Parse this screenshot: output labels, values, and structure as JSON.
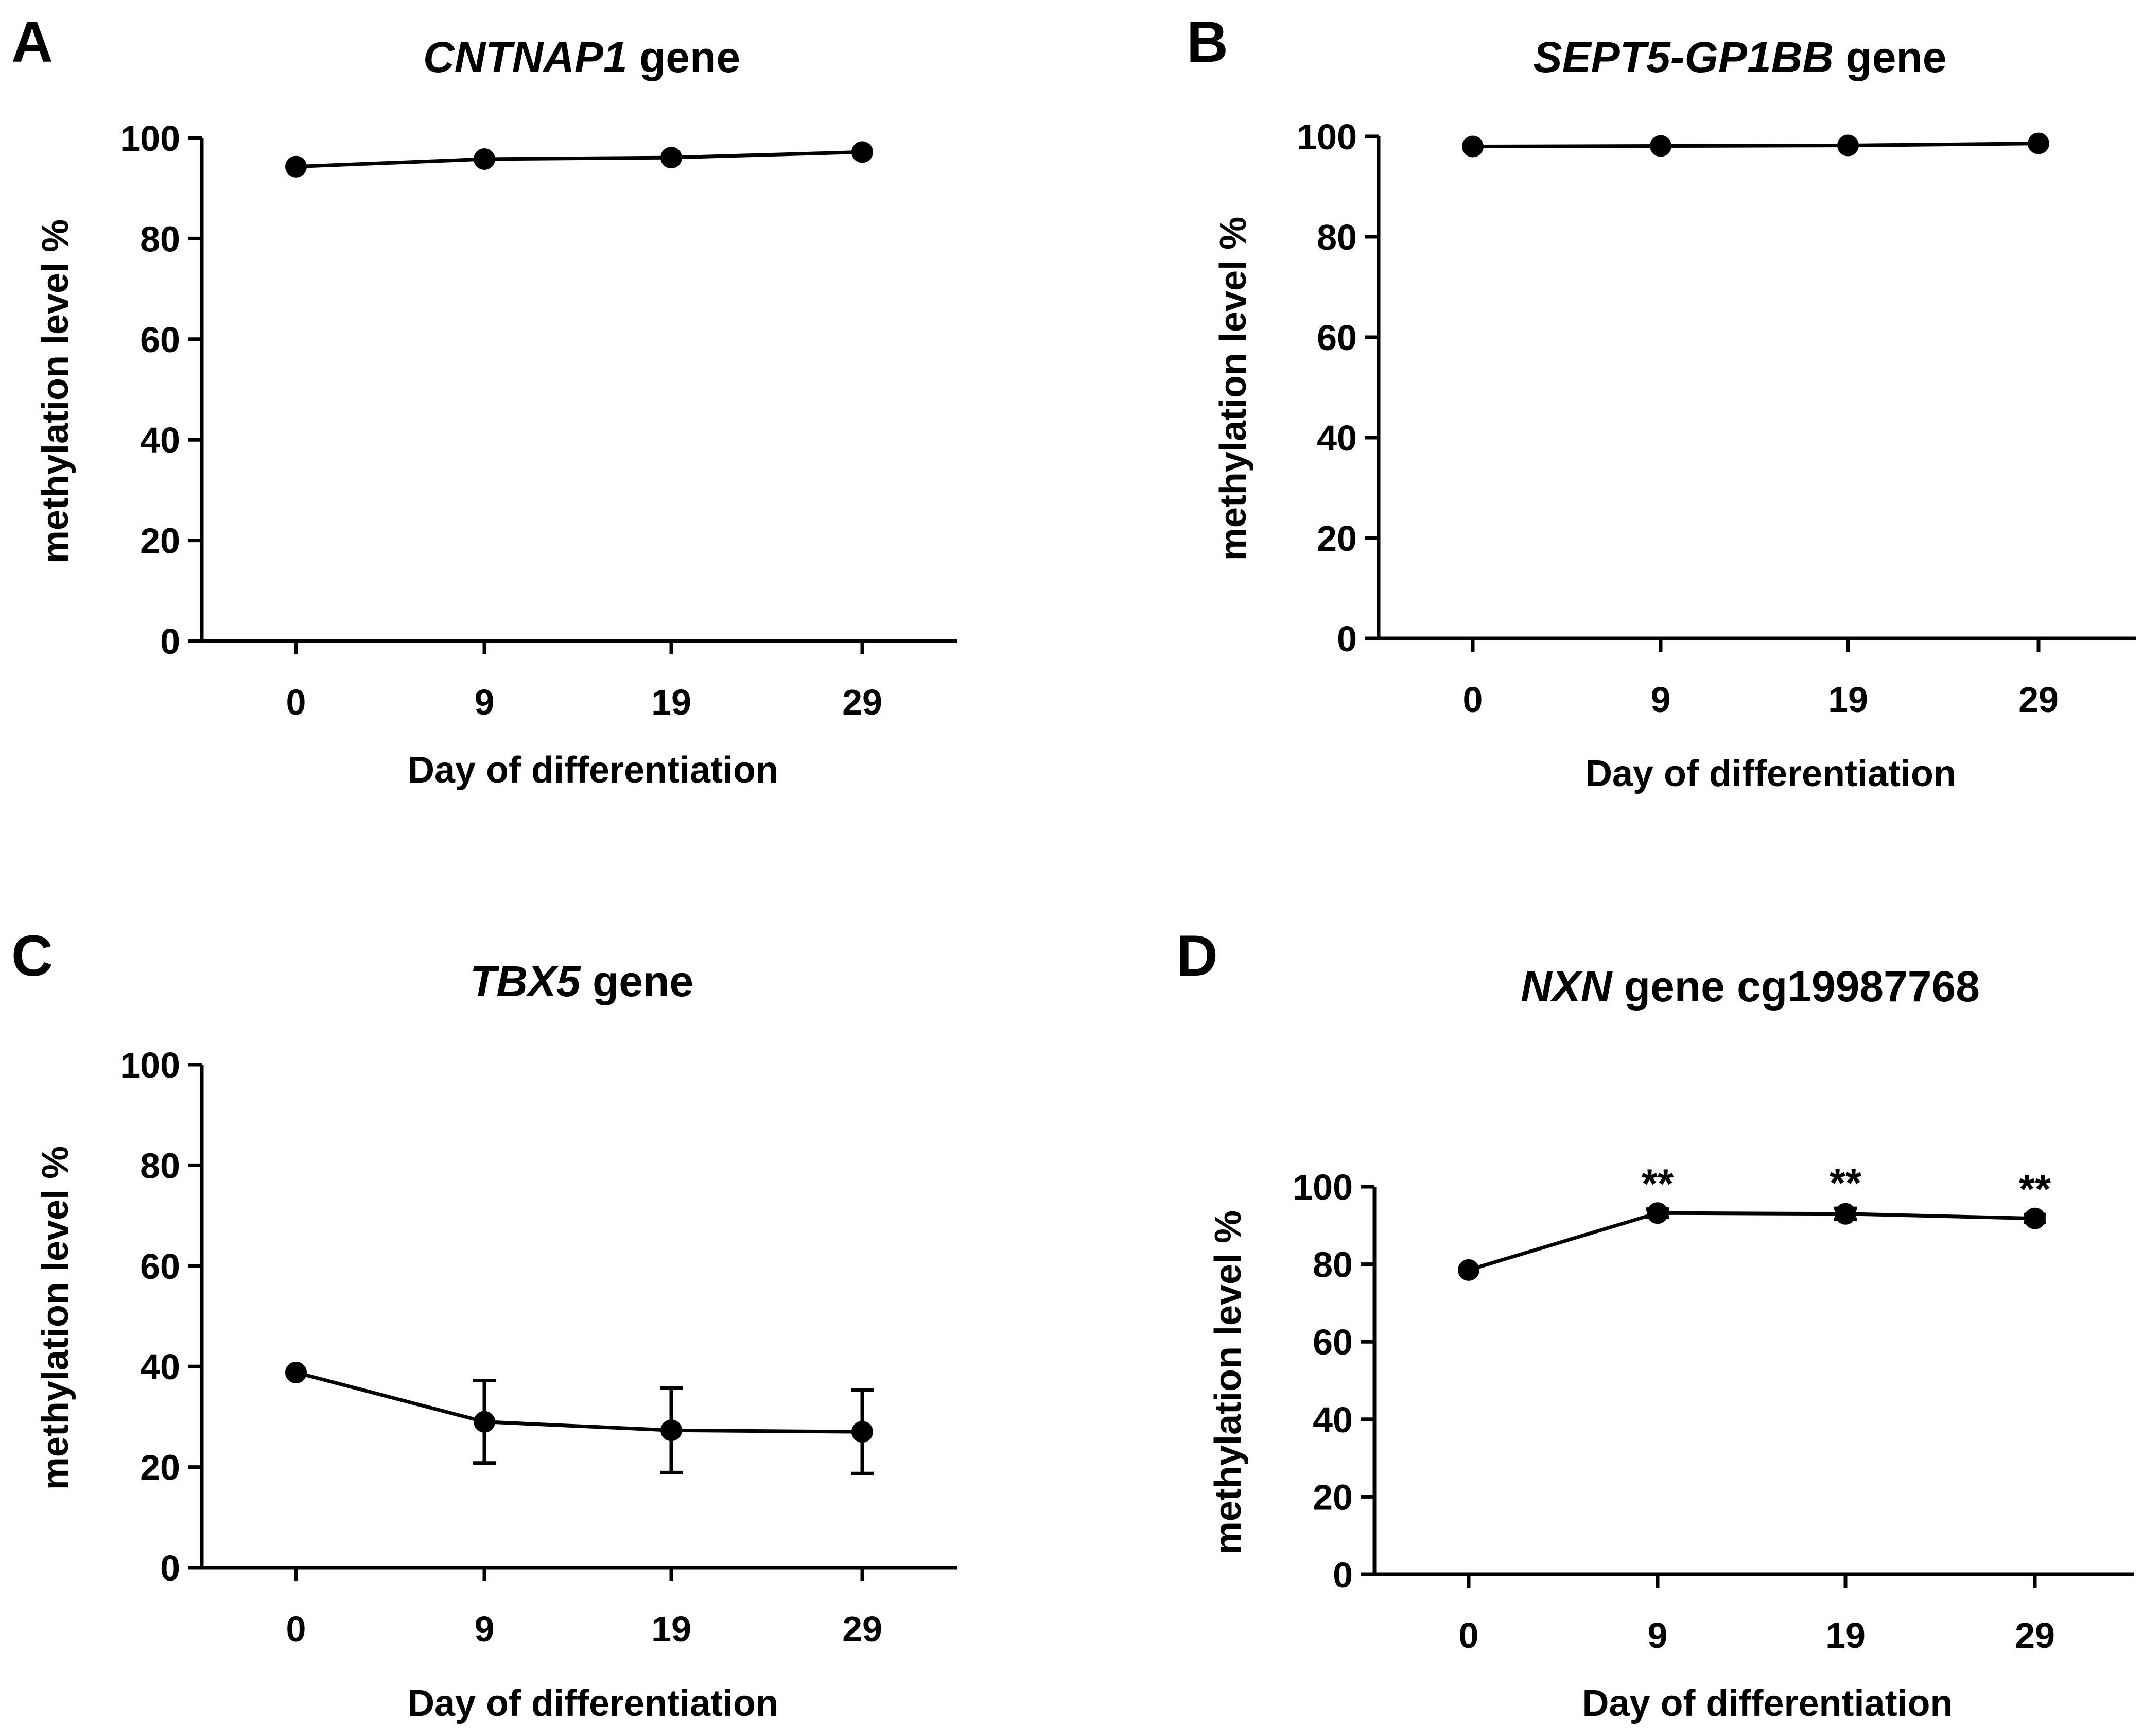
{
  "chart_data": [
    {
      "panel": "A",
      "type": "line",
      "title_italic": "CNTNAP1",
      "title_rest": " gene",
      "xlabel": "Day of differentiation",
      "ylabel": "methylation level %",
      "categories": [
        "0",
        "9",
        "19",
        "29"
      ],
      "values": [
        94.3,
        95.8,
        96.1,
        97.2
      ],
      "errors": [
        0,
        0,
        0,
        0
      ],
      "ylim": [
        0,
        100
      ],
      "yticks": [
        0,
        20,
        40,
        60,
        80,
        100
      ],
      "annotations": [
        "",
        "",
        "",
        ""
      ]
    },
    {
      "panel": "B",
      "type": "line",
      "title_italic": "SEPT5-GP1BB",
      "title_rest": " gene",
      "xlabel": "Day of differentiation",
      "ylabel": "methylation level %",
      "categories": [
        "0",
        "9",
        "19",
        "29"
      ],
      "values": [
        98.0,
        98.1,
        98.2,
        98.6
      ],
      "errors": [
        0,
        0,
        0,
        0
      ],
      "ylim": [
        0,
        100
      ],
      "yticks": [
        0,
        20,
        40,
        60,
        80,
        100
      ],
      "annotations": [
        "",
        "",
        "",
        ""
      ]
    },
    {
      "panel": "C",
      "type": "line",
      "title_italic": "TBX5",
      "title_rest": " gene",
      "xlabel": "Day of differentiation",
      "ylabel": "methylation level %",
      "categories": [
        "0",
        "9",
        "19",
        "29"
      ],
      "values": [
        38.8,
        29.0,
        27.3,
        27.0
      ],
      "errors": [
        0,
        8.2,
        8.4,
        8.3
      ],
      "ylim": [
        0,
        100
      ],
      "yticks": [
        0,
        20,
        40,
        60,
        80,
        100
      ],
      "annotations": [
        "",
        "",
        "",
        ""
      ]
    },
    {
      "panel": "D",
      "type": "line",
      "title_italic": "NXN",
      "title_rest": " gene cg19987768",
      "xlabel": "Day of differentiation",
      "ylabel": "methylation level %",
      "categories": [
        "0",
        "9",
        "19",
        "29"
      ],
      "values": [
        78.5,
        93.2,
        93.0,
        91.8
      ],
      "errors": [
        0,
        1.0,
        1.4,
        1.0
      ],
      "ylim": [
        0,
        100
      ],
      "yticks": [
        0,
        20,
        40,
        60,
        80,
        100
      ],
      "annotations": [
        "",
        "**",
        "**",
        "**"
      ]
    }
  ],
  "colors": {
    "line": "#000000",
    "background": "#ffffff"
  }
}
